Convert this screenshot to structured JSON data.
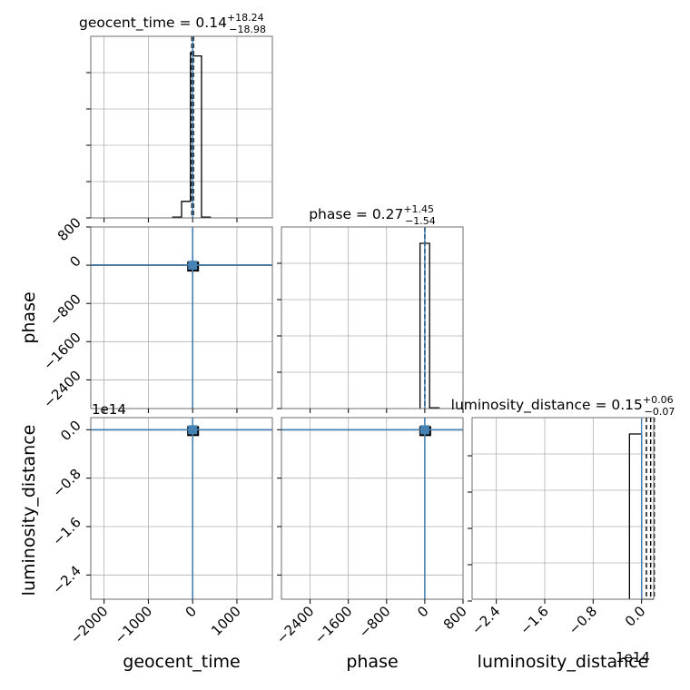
{
  "chart_data": {
    "type": "corner",
    "parameters": [
      "geocent_time",
      "phase",
      "luminosity_distance"
    ],
    "axis_labels": {
      "x": [
        "geocent_time",
        "phase",
        "luminosity_distance"
      ],
      "y": [
        "phase",
        "luminosity_distance"
      ]
    },
    "exponent_labels": {
      "luminosity_distance_y": "1e14",
      "luminosity_distance_x": "1e14"
    },
    "titles": [
      {
        "name": "geocent_time",
        "prefix": "geocent_time = 0.14",
        "plus": "+18.24",
        "minus": "−18.98"
      },
      {
        "name": "phase",
        "prefix": "phase = 0.27",
        "plus": "+1.45",
        "minus": "−1.54"
      },
      {
        "name": "luminosity_distance",
        "prefix": "luminosity_distance = 0.15",
        "plus": "+0.06",
        "minus": "−0.07"
      }
    ],
    "ranges": {
      "geocent_time": [
        -2300,
        1800
      ],
      "phase": [
        -3000,
        800
      ],
      "luminosity_distance": [
        -2.8,
        0.2
      ]
    },
    "ticks": {
      "geocent_time": {
        "values": [
          -2000,
          -1000,
          0,
          1000
        ],
        "labels": [
          "−2000",
          "−1000",
          "0",
          "1000"
        ]
      },
      "phase": {
        "values": [
          -2400,
          -1600,
          -800,
          0,
          800
        ],
        "labels": [
          "−2400",
          "−1600",
          "−800",
          "0",
          "800"
        ]
      },
      "luminosity_distance": {
        "values": [
          -2.4,
          -1.6,
          -0.8,
          0.0
        ],
        "labels": [
          "−2.4",
          "−1.6",
          "−0.8",
          "0.0"
        ]
      }
    },
    "histograms": [
      {
        "name": "geocent_time",
        "bin_edges": [
          -450,
          -250,
          -50,
          0,
          200,
          400
        ],
        "counts": [
          0.005,
          0.1,
          1.0,
          0.98,
          0.005
        ],
        "median": 0.14,
        "lower": -18.84,
        "upper": 18.38
      },
      {
        "name": "phase",
        "bin_edges": [
          -100,
          100,
          300
        ],
        "counts": [
          1.0,
          0.005
        ],
        "median": 0.27,
        "lower": -1.27,
        "upper": 1.72
      },
      {
        "name": "luminosity_distance",
        "bin_edges": [
          -0.2,
          0.0,
          0.2
        ],
        "counts": [
          1.0,
          0.0
        ],
        "median": 0.15,
        "lower": 0.08,
        "upper": 0.21
      }
    ],
    "scatter_panels": [
      {
        "x": "geocent_time",
        "y": "phase",
        "center": [
          0,
          0
        ]
      },
      {
        "x": "geocent_time",
        "y": "luminosity_distance",
        "center": [
          0,
          0
        ]
      },
      {
        "x": "phase",
        "y": "luminosity_distance",
        "center": [
          0,
          0
        ]
      }
    ],
    "truth": {
      "geocent_time": 0,
      "phase": 0,
      "luminosity_distance": 0
    },
    "truth_color": "#4682b4",
    "hist_color": "#000000",
    "grid": true
  }
}
